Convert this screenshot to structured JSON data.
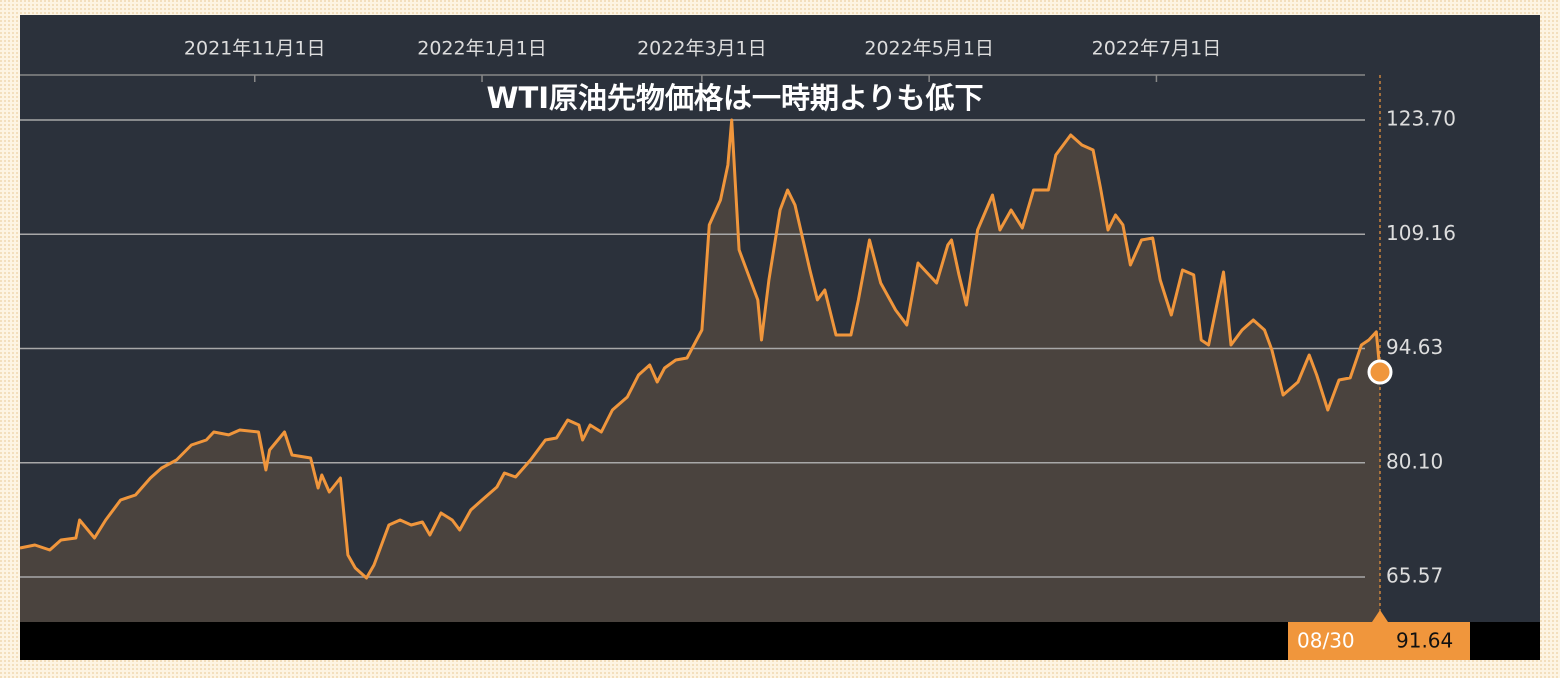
{
  "chart_data": {
    "type": "area",
    "title": "WTI原油先物価格は一時期よりも低下",
    "x": [
      "2021-08-30",
      "2021-09-03",
      "2021-09-07",
      "2021-09-10",
      "2021-09-14",
      "2021-09-15",
      "2021-09-19",
      "2021-09-22",
      "2021-09-26",
      "2021-09-30",
      "2021-10-04",
      "2021-10-07",
      "2021-10-11",
      "2021-10-15",
      "2021-10-19",
      "2021-10-21",
      "2021-10-25",
      "2021-10-28",
      "2021-11-02",
      "2021-11-04",
      "2021-11-05",
      "2021-11-09",
      "2021-11-11",
      "2021-11-16",
      "2021-11-18",
      "2021-11-19",
      "2021-11-21",
      "2021-11-24",
      "2021-11-26",
      "2021-11-28",
      "2021-12-01",
      "2021-12-03",
      "2021-12-07",
      "2021-12-10",
      "2021-12-13",
      "2021-12-16",
      "2021-12-18",
      "2021-12-21",
      "2021-12-24",
      "2021-12-26",
      "2021-12-29",
      "2022-01-01",
      "2022-01-05",
      "2022-01-07",
      "2022-01-10",
      "2022-01-14",
      "2022-01-18",
      "2022-01-21",
      "2022-01-24",
      "2022-01-27",
      "2022-01-28",
      "2022-01-30",
      "2022-02-02",
      "2022-02-05",
      "2022-02-09",
      "2022-02-12",
      "2022-02-15",
      "2022-02-17",
      "2022-02-19",
      "2022-02-22",
      "2022-02-25",
      "2022-03-01",
      "2022-03-03",
      "2022-03-06",
      "2022-03-08",
      "2022-03-09",
      "2022-03-11",
      "2022-03-13",
      "2022-03-16",
      "2022-03-17",
      "2022-03-19",
      "2022-03-22",
      "2022-03-24",
      "2022-03-26",
      "2022-03-30",
      "2022-04-01",
      "2022-04-03",
      "2022-04-06",
      "2022-04-10",
      "2022-04-12",
      "2022-04-15",
      "2022-04-18",
      "2022-04-22",
      "2022-04-25",
      "2022-04-28",
      "2022-05-03",
      "2022-05-06",
      "2022-05-07",
      "2022-05-09",
      "2022-05-11",
      "2022-05-14",
      "2022-05-18",
      "2022-05-20",
      "2022-05-23",
      "2022-05-26",
      "2022-05-29",
      "2022-06-02",
      "2022-06-04",
      "2022-06-08",
      "2022-06-11",
      "2022-06-14",
      "2022-06-16",
      "2022-06-18",
      "2022-06-20",
      "2022-06-22",
      "2022-06-24",
      "2022-06-27",
      "2022-06-30",
      "2022-07-02",
      "2022-07-05",
      "2022-07-08",
      "2022-07-11",
      "2022-07-13",
      "2022-07-15",
      "2022-07-19",
      "2022-07-21",
      "2022-07-24",
      "2022-07-27",
      "2022-07-30",
      "2022-08-01",
      "2022-08-04",
      "2022-08-08",
      "2022-08-11",
      "2022-08-13",
      "2022-08-16",
      "2022-08-19",
      "2022-08-22",
      "2022-08-25",
      "2022-08-27",
      "2022-08-29",
      "2022-08-30"
    ],
    "series": [
      {
        "color": "#f0963c",
        "values": [
          69.26,
          69.64,
          69.01,
          70.28,
          70.53,
          72.82,
          70.53,
          72.82,
          75.37,
          76.0,
          78.17,
          79.44,
          80.46,
          82.36,
          83.0,
          84.02,
          83.64,
          84.27,
          84.02,
          79.18,
          81.73,
          84.02,
          81.09,
          80.71,
          76.89,
          78.55,
          76.39,
          78.17,
          68.37,
          66.72,
          65.45,
          67.1,
          72.19,
          72.82,
          72.19,
          72.57,
          70.92,
          73.71,
          72.82,
          71.55,
          74.1,
          75.37,
          77.02,
          78.8,
          78.29,
          80.46,
          83.0,
          83.25,
          85.54,
          84.91,
          83.0,
          84.91,
          84.02,
          86.81,
          88.47,
          91.27,
          92.54,
          90.38,
          92.16,
          93.17,
          93.43,
          96.99,
          110.35,
          113.52,
          117.98,
          123.7,
          107.17,
          104.62,
          100.81,
          95.72,
          103.35,
          112.25,
          114.8,
          112.89,
          104.62,
          100.81,
          102.08,
          96.35,
          96.35,
          100.81,
          108.44,
          102.97,
          99.53,
          97.63,
          105.51,
          102.97,
          107.8,
          108.44,
          103.99,
          100.17,
          109.71,
          114.16,
          109.71,
          112.25,
          109.96,
          114.8,
          114.8,
          119.25,
          121.79,
          120.52,
          119.88,
          115.05,
          109.71,
          111.62,
          110.35,
          105.26,
          108.44,
          108.69,
          103.35,
          98.9,
          104.62,
          103.99,
          95.72,
          95.08,
          104.37,
          95.08,
          96.99,
          98.26,
          96.99,
          94.45,
          88.72,
          90.38,
          93.81,
          91.27,
          86.81,
          90.63,
          90.89,
          95.08,
          95.72,
          96.74,
          91.64
        ]
      }
    ],
    "fill_color": "#4a433e",
    "xlim": [
      "2021-08-30",
      "2022-08-30"
    ],
    "xticks": [
      {
        "value": "2021-11-01",
        "label": "2021年11月1日"
      },
      {
        "value": "2022-01-01",
        "label": "2022年1月1日"
      },
      {
        "value": "2022-03-01",
        "label": "2022年3月1日"
      },
      {
        "value": "2022-05-01",
        "label": "2022年5月1日"
      },
      {
        "value": "2022-07-01",
        "label": "2022年7月1日"
      }
    ],
    "ylim": [
      59.85,
      129.42
    ],
    "yticks": [
      65.57,
      {
        "value": 80.1,
        "label": "80.10"
      },
      94.63,
      109.16,
      {
        "value": 123.7,
        "label": "123.70"
      }
    ],
    "grid": true,
    "tooltip": {
      "date": "08/30"
    }
  }
}
